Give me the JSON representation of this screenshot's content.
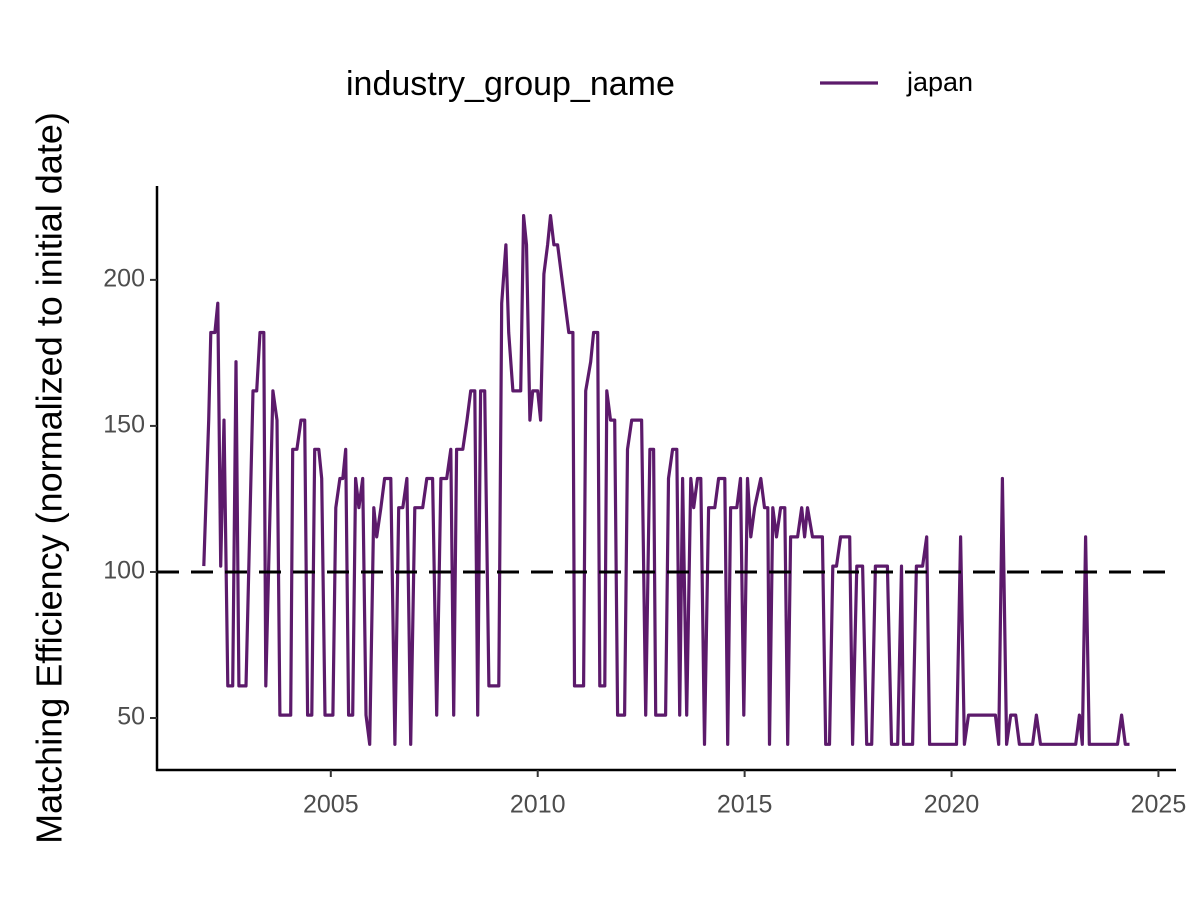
{
  "chart_data": {
    "type": "line",
    "y_label": "Matching Efficiency (normalized to initial date)",
    "legend_title": "industry_group_name",
    "legend_position": "top",
    "xlim": [
      2000.8,
      2025.4
    ],
    "ylim": [
      32.2,
      231.8
    ],
    "xticks": [
      2005,
      2010,
      2015,
      2020,
      2025
    ],
    "yticks": [
      50,
      100,
      150,
      200
    ],
    "hline": 100,
    "series": [
      {
        "name": "japan",
        "color": "#5c1a6b",
        "x": [
          2001.93,
          2002.05,
          2002.1,
          2002.2,
          2002.27,
          2002.34,
          2002.42,
          2002.51,
          2002.63,
          2002.71,
          2002.78,
          2002.95,
          2003.12,
          2003.21,
          2003.29,
          2003.38,
          2003.43,
          2003.6,
          2003.7,
          2003.77,
          2004.03,
          2004.08,
          2004.18,
          2004.28,
          2004.37,
          2004.44,
          2004.54,
          2004.61,
          2004.71,
          2004.78,
          2004.86,
          2005.05,
          2005.12,
          2005.22,
          2005.29,
          2005.36,
          2005.43,
          2005.53,
          2005.6,
          2005.68,
          2005.77,
          2005.85,
          2005.94,
          2006.04,
          2006.11,
          2006.21,
          2006.3,
          2006.45,
          2006.55,
          2006.64,
          2006.74,
          2006.84,
          2006.93,
          2007.03,
          2007.22,
          2007.32,
          2007.46,
          2007.56,
          2007.66,
          2007.8,
          2007.9,
          2007.97,
          2008.04,
          2008.19,
          2008.29,
          2008.38,
          2008.48,
          2008.55,
          2008.62,
          2008.72,
          2008.82,
          2009.06,
          2009.13,
          2009.23,
          2009.3,
          2009.4,
          2009.59,
          2009.66,
          2009.73,
          2009.81,
          2009.88,
          2010.0,
          2010.07,
          2010.15,
          2010.24,
          2010.31,
          2010.39,
          2010.48,
          2010.75,
          2010.85,
          2010.89,
          2011.11,
          2011.16,
          2011.28,
          2011.35,
          2011.45,
          2011.5,
          2011.62,
          2011.67,
          2011.76,
          2011.86,
          2011.93,
          2012.1,
          2012.17,
          2012.27,
          2012.51,
          2012.61,
          2012.71,
          2012.8,
          2012.85,
          2013.09,
          2013.16,
          2013.26,
          2013.36,
          2013.43,
          2013.5,
          2013.6,
          2013.7,
          2013.77,
          2013.86,
          2013.94,
          2014.03,
          2014.13,
          2014.28,
          2014.37,
          2014.52,
          2014.59,
          2014.66,
          2014.81,
          2014.9,
          2014.98,
          2015.07,
          2015.15,
          2015.24,
          2015.39,
          2015.48,
          2015.56,
          2015.6,
          2015.68,
          2015.77,
          2015.87,
          2015.97,
          2016.04,
          2016.11,
          2016.28,
          2016.38,
          2016.45,
          2016.52,
          2016.64,
          2016.88,
          2016.96,
          2017.05,
          2017.13,
          2017.22,
          2017.32,
          2017.54,
          2017.61,
          2017.71,
          2017.85,
          2017.95,
          2018.07,
          2018.16,
          2018.45,
          2018.55,
          2018.7,
          2018.79,
          2018.84,
          2019.06,
          2019.15,
          2019.3,
          2019.4,
          2019.47,
          2020.12,
          2020.22,
          2020.31,
          2020.41,
          2021.06,
          2021.14,
          2021.23,
          2021.33,
          2021.43,
          2021.55,
          2021.64,
          2021.96,
          2022.05,
          2022.15,
          2023.0,
          2023.09,
          2023.16,
          2023.24,
          2023.33,
          2024.01,
          2024.11,
          2024.2,
          2024.3
        ],
        "values": [
          102,
          152,
          182,
          182,
          192,
          102,
          152,
          61,
          61,
          172,
          61,
          61,
          162,
          162,
          182,
          182,
          61,
          162,
          152,
          51,
          51,
          142,
          142,
          152,
          152,
          51,
          51,
          142,
          142,
          132,
          51,
          51,
          122,
          132,
          132,
          142,
          51,
          51,
          132,
          122,
          132,
          51,
          41,
          122,
          112,
          122,
          132,
          132,
          41,
          122,
          122,
          132,
          41,
          122,
          122,
          132,
          132,
          51,
          132,
          132,
          142,
          51,
          142,
          142,
          152,
          162,
          162,
          51,
          162,
          162,
          61,
          61,
          192,
          212,
          182,
          162,
          162,
          222,
          212,
          152,
          162,
          162,
          152,
          202,
          212,
          222,
          212,
          212,
          182,
          182,
          61,
          61,
          162,
          172,
          182,
          182,
          61,
          61,
          162,
          152,
          152,
          51,
          51,
          142,
          152,
          152,
          51,
          142,
          142,
          51,
          51,
          132,
          142,
          142,
          51,
          132,
          51,
          132,
          122,
          132,
          132,
          41,
          122,
          122,
          132,
          132,
          41,
          122,
          122,
          132,
          51,
          132,
          112,
          122,
          132,
          122,
          122,
          41,
          122,
          112,
          122,
          122,
          41,
          112,
          112,
          122,
          112,
          122,
          112,
          112,
          41,
          41,
          102,
          102,
          112,
          112,
          41,
          102,
          102,
          41,
          41,
          102,
          102,
          41,
          41,
          102,
          41,
          41,
          102,
          102,
          112,
          41,
          41,
          112,
          41,
          51,
          51,
          41,
          132,
          41,
          51,
          51,
          41,
          41,
          51,
          41,
          41,
          51,
          41,
          112,
          41,
          41,
          51,
          41,
          41
        ]
      }
    ]
  }
}
